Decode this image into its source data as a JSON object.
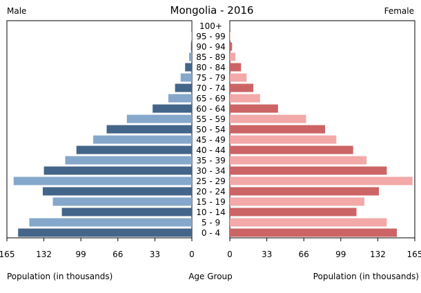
{
  "chart_data": {
    "type": "bar",
    "subtype": "population-pyramid",
    "title": "Mongolia - 2016",
    "left_label": "Male",
    "right_label": "Female",
    "center_axis_label": "Age Group",
    "xlabel_left": "Population (in thousands)",
    "xlabel_right": "Population (in thousands)",
    "xlim": [
      0,
      165
    ],
    "xticks": [
      0,
      33,
      66,
      99,
      132,
      165
    ],
    "grid": false,
    "categories": [
      "0 - 4",
      "5 - 9",
      "10 - 14",
      "15 - 19",
      "20 - 24",
      "25 - 29",
      "30 - 34",
      "35 - 39",
      "40 - 44",
      "45 - 49",
      "50 - 54",
      "55 - 59",
      "60 - 64",
      "65 - 69",
      "70 - 74",
      "75 - 79",
      "80 - 84",
      "85 - 89",
      "90 - 94",
      "95 - 99",
      "100+"
    ],
    "series": [
      {
        "name": "Male",
        "values": [
          155,
          145,
          116,
          124,
          133,
          159,
          132,
          113,
          103,
          88,
          76,
          58,
          35,
          21,
          15,
          10,
          6,
          2.5,
          0.8,
          0.3,
          0.1
        ],
        "colors": [
          "#44658a",
          "#85a7cb"
        ]
      },
      {
        "name": "Female",
        "values": [
          149,
          140,
          113,
          120,
          133,
          163,
          140,
          122,
          110,
          95,
          85,
          68,
          43,
          27,
          21,
          15,
          10,
          5,
          2,
          0.4,
          0.1
        ],
        "colors": [
          "#cc6465",
          "#f2a9a8"
        ]
      }
    ]
  }
}
